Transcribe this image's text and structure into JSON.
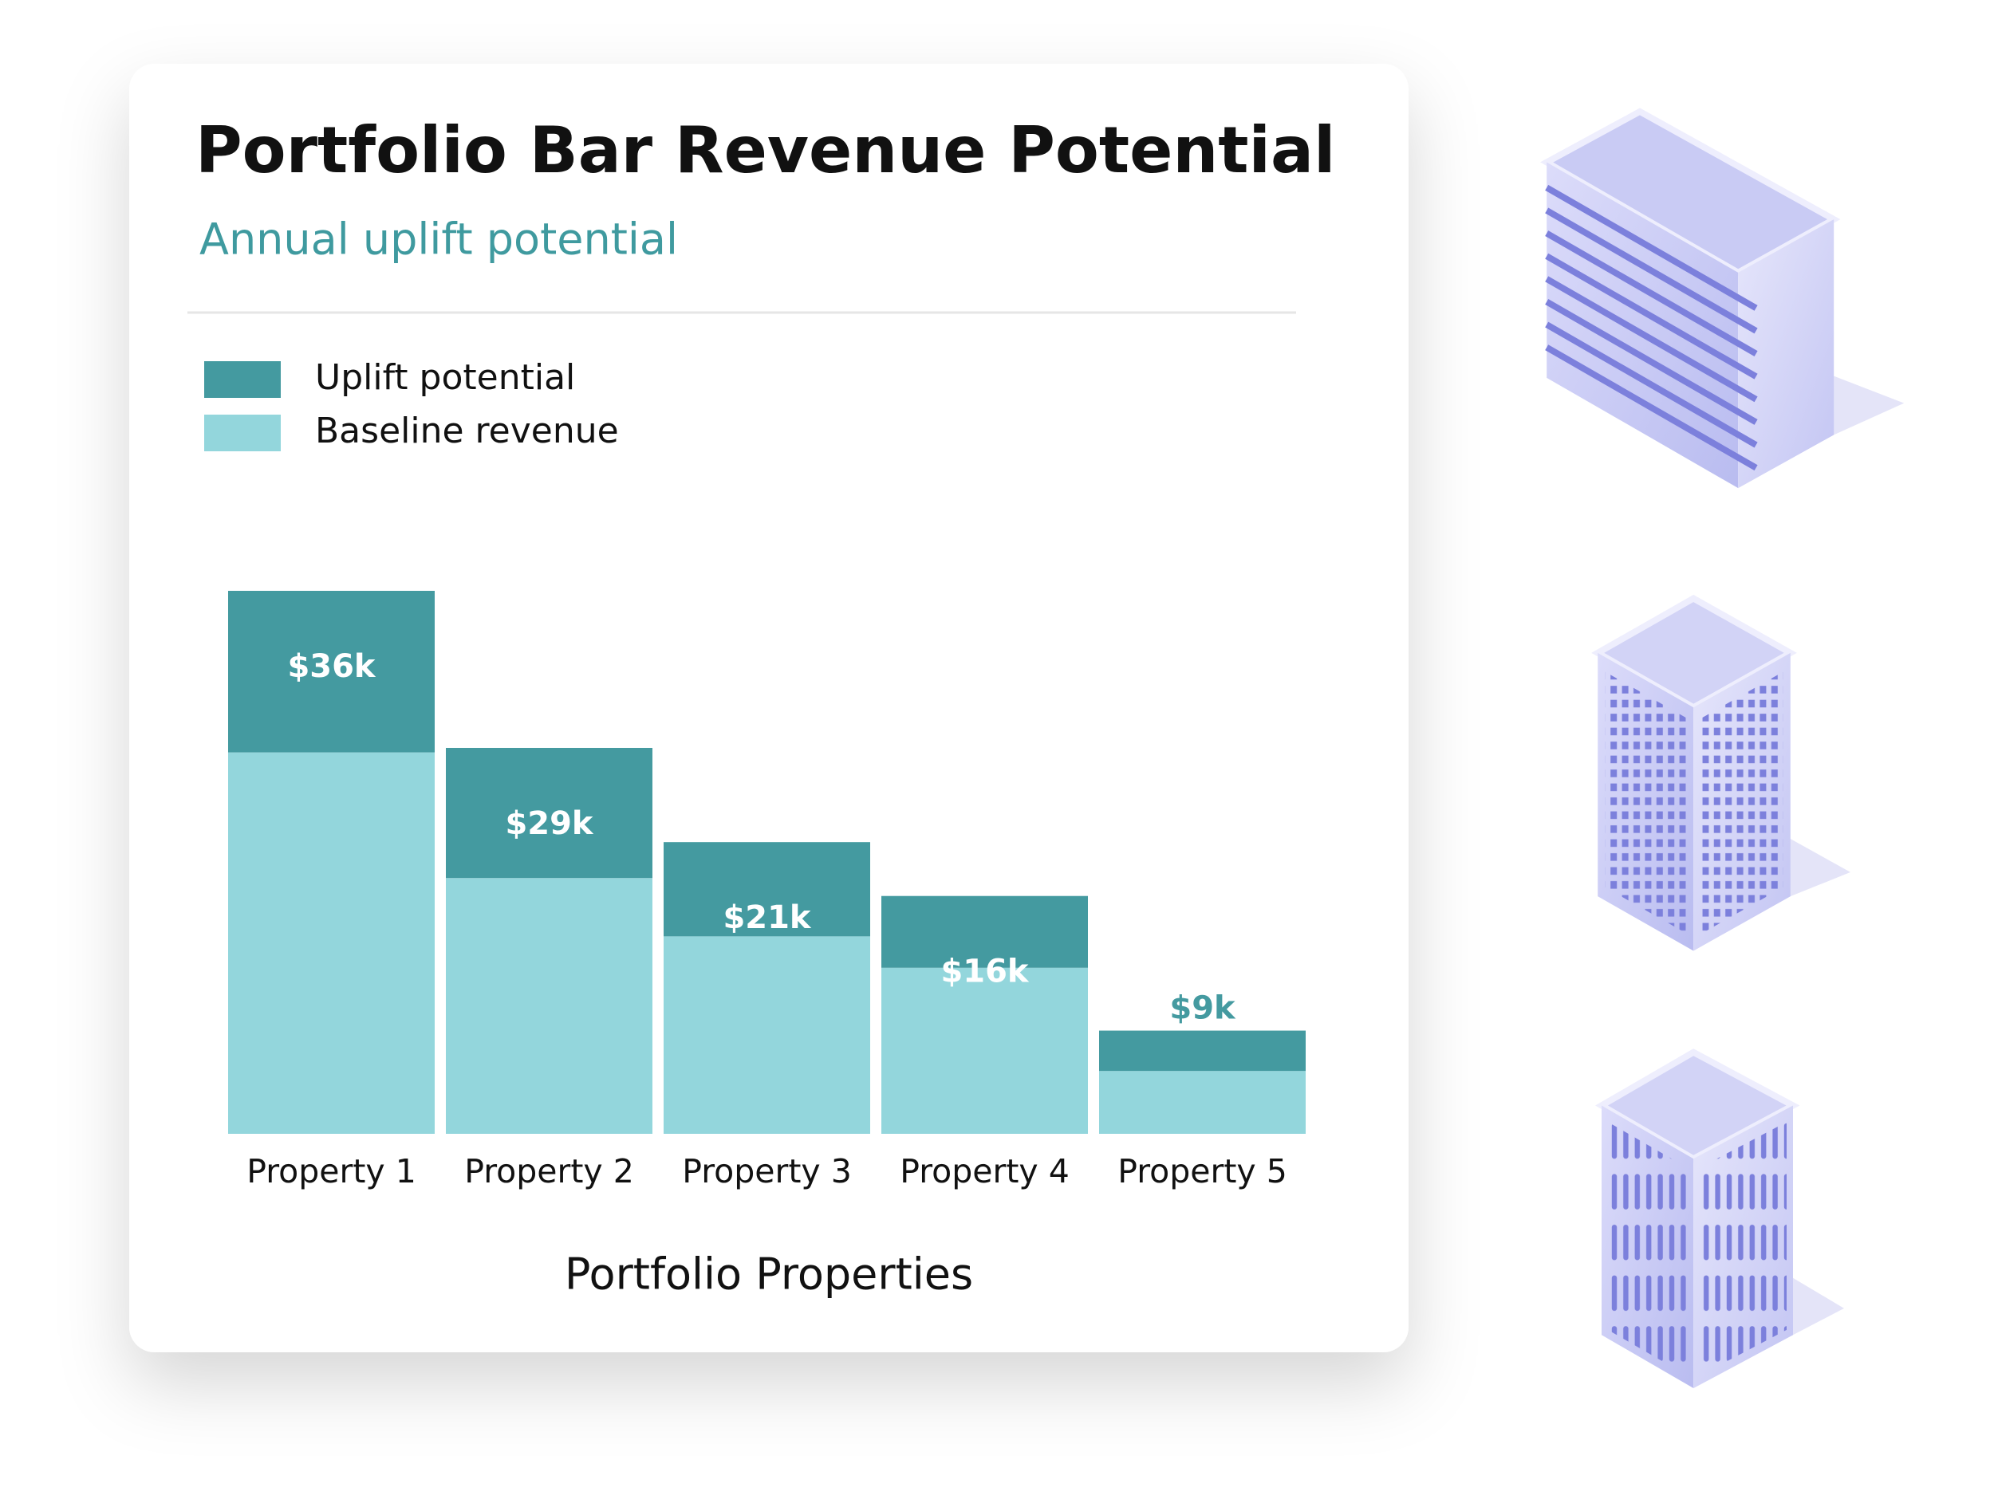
{
  "chart_data": {
    "type": "stacked_bar",
    "title": "Portfolio Bar Revenue Potential",
    "subtitle": "Annual uplift potential",
    "x_label": "Portfolio Properties",
    "categories": [
      "Property 1",
      "Property 2",
      "Property 3",
      "Property 4",
      "Property 5"
    ],
    "series": [
      {
        "name": "Uplift potential",
        "color": "#449aa0",
        "values": [
          36,
          29,
          21,
          16,
          9
        ],
        "value_labels": [
          "$36k",
          "$29k",
          "$21k",
          "$16k",
          "$9k"
        ]
      },
      {
        "name": "Baseline revenue",
        "color": "#93d6dc",
        "values": [
          85,
          57,
          44,
          37,
          14
        ]
      }
    ]
  }
}
